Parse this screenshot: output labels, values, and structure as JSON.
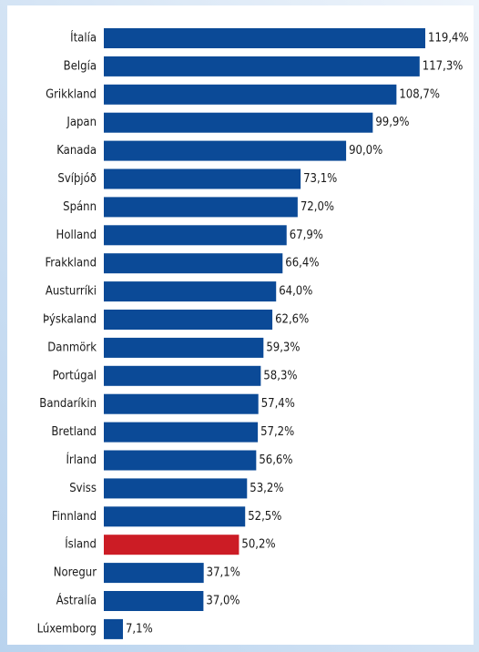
{
  "chart_data": {
    "type": "barh",
    "categories": [
      "Ítalía",
      "Belgía",
      "Grikkland",
      "Japan",
      "Kanada",
      "Svíþjóð",
      "Spánn",
      "Holland",
      "Frakkland",
      "Austurríki",
      "Þýskaland",
      "Danmörk",
      "Portúgal",
      "Bandaríkin",
      "Bretland",
      "Írland",
      "Sviss",
      "Finnland",
      "Ísland",
      "Noregur",
      "Ástralía",
      "Lúxemborg"
    ],
    "values": [
      119.4,
      117.3,
      108.7,
      99.9,
      90.0,
      73.1,
      72.0,
      67.9,
      66.4,
      64.0,
      62.6,
      59.3,
      58.3,
      57.4,
      57.2,
      56.6,
      53.2,
      52.5,
      50.2,
      37.1,
      37.0,
      7.1
    ],
    "value_labels": [
      "119,4%",
      "117,3%",
      "108,7%",
      "99,9%",
      "90,0%",
      "73,1%",
      "72,0%",
      "67,9%",
      "66,4%",
      "64,0%",
      "62,6%",
      "59,3%",
      "58,3%",
      "57,4%",
      "57,2%",
      "56,6%",
      "53,2%",
      "52,5%",
      "50,2%",
      "37,1%",
      "37,0%",
      "7,1%"
    ],
    "colors": [
      "#0b4a97",
      "#0b4a97",
      "#0b4a97",
      "#0b4a97",
      "#0b4a97",
      "#0b4a97",
      "#0b4a97",
      "#0b4a97",
      "#0b4a97",
      "#0b4a97",
      "#0b4a97",
      "#0b4a97",
      "#0b4a97",
      "#0b4a97",
      "#0b4a97",
      "#0b4a97",
      "#0b4a97",
      "#0b4a97",
      "#cc1c25",
      "#0b4a97",
      "#0b4a97",
      "#0b4a97"
    ]
  }
}
